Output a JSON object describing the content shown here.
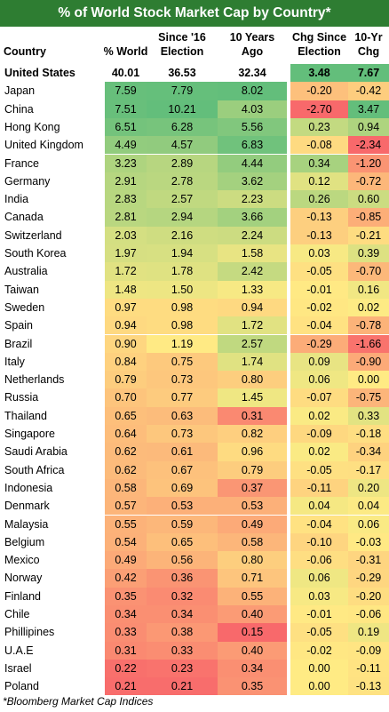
{
  "title": "% of World Stock Market Cap by Country*",
  "footnote": "*Bloomberg Market Cap Indices",
  "chart_data": {
    "type": "table",
    "columns": [
      "Country",
      "% World",
      "Since '16 Election",
      "10 Years Ago",
      "Chg Since Election",
      "10-Yr Chg"
    ],
    "rows": [
      {
        "country": "United States",
        "world": "40.01",
        "election": "36.53",
        "ago": "32.34",
        "chg_election": "3.48",
        "chg_10yr": "7.67"
      },
      {
        "country": "Japan",
        "world": "7.59",
        "election": "7.79",
        "ago": "8.02",
        "chg_election": "-0.20",
        "chg_10yr": "-0.42"
      },
      {
        "country": "China",
        "world": "7.51",
        "election": "10.21",
        "ago": "4.03",
        "chg_election": "-2.70",
        "chg_10yr": "3.47"
      },
      {
        "country": "Hong Kong",
        "world": "6.51",
        "election": "6.28",
        "ago": "5.56",
        "chg_election": "0.23",
        "chg_10yr": "0.94"
      },
      {
        "country": "United Kingdom",
        "world": "4.49",
        "election": "4.57",
        "ago": "6.83",
        "chg_election": "-0.08",
        "chg_10yr": "-2.34"
      },
      {
        "country": "France",
        "world": "3.23",
        "election": "2.89",
        "ago": "4.44",
        "chg_election": "0.34",
        "chg_10yr": "-1.20"
      },
      {
        "country": "Germany",
        "world": "2.91",
        "election": "2.78",
        "ago": "3.62",
        "chg_election": "0.12",
        "chg_10yr": "-0.72"
      },
      {
        "country": "India",
        "world": "2.83",
        "election": "2.57",
        "ago": "2.23",
        "chg_election": "0.26",
        "chg_10yr": "0.60"
      },
      {
        "country": "Canada",
        "world": "2.81",
        "election": "2.94",
        "ago": "3.66",
        "chg_election": "-0.13",
        "chg_10yr": "-0.85"
      },
      {
        "country": "Switzerland",
        "world": "2.03",
        "election": "2.16",
        "ago": "2.24",
        "chg_election": "-0.13",
        "chg_10yr": "-0.21"
      },
      {
        "country": "South Korea",
        "world": "1.97",
        "election": "1.94",
        "ago": "1.58",
        "chg_election": "0.03",
        "chg_10yr": "0.39"
      },
      {
        "country": "Australia",
        "world": "1.72",
        "election": "1.78",
        "ago": "2.42",
        "chg_election": "-0.05",
        "chg_10yr": "-0.70"
      },
      {
        "country": "Taiwan",
        "world": "1.48",
        "election": "1.50",
        "ago": "1.33",
        "chg_election": "-0.01",
        "chg_10yr": "0.16"
      },
      {
        "country": "Sweden",
        "world": "0.97",
        "election": "0.98",
        "ago": "0.94",
        "chg_election": "-0.02",
        "chg_10yr": "0.02"
      },
      {
        "country": "Spain",
        "world": "0.94",
        "election": "0.98",
        "ago": "1.72",
        "chg_election": "-0.04",
        "chg_10yr": "-0.78"
      },
      {
        "country": "Brazil",
        "world": "0.90",
        "election": "1.19",
        "ago": "2.57",
        "chg_election": "-0.29",
        "chg_10yr": "-1.66"
      },
      {
        "country": "Italy",
        "world": "0.84",
        "election": "0.75",
        "ago": "1.74",
        "chg_election": "0.09",
        "chg_10yr": "-0.90"
      },
      {
        "country": "Netherlands",
        "world": "0.79",
        "election": "0.73",
        "ago": "0.80",
        "chg_election": "0.06",
        "chg_10yr": "0.00"
      },
      {
        "country": "Russia",
        "world": "0.70",
        "election": "0.77",
        "ago": "1.45",
        "chg_election": "-0.07",
        "chg_10yr": "-0.75"
      },
      {
        "country": "Thailand",
        "world": "0.65",
        "election": "0.63",
        "ago": "0.31",
        "chg_election": "0.02",
        "chg_10yr": "0.33"
      },
      {
        "country": "Singapore",
        "world": "0.64",
        "election": "0.73",
        "ago": "0.82",
        "chg_election": "-0.09",
        "chg_10yr": "-0.18"
      },
      {
        "country": "Saudi Arabia",
        "world": "0.62",
        "election": "0.61",
        "ago": "0.96",
        "chg_election": "0.02",
        "chg_10yr": "-0.34"
      },
      {
        "country": "South Africa",
        "world": "0.62",
        "election": "0.67",
        "ago": "0.79",
        "chg_election": "-0.05",
        "chg_10yr": "-0.17"
      },
      {
        "country": "Indonesia",
        "world": "0.58",
        "election": "0.69",
        "ago": "0.37",
        "chg_election": "-0.11",
        "chg_10yr": "0.20"
      },
      {
        "country": "Denmark",
        "world": "0.57",
        "election": "0.53",
        "ago": "0.53",
        "chg_election": "0.04",
        "chg_10yr": "0.04"
      },
      {
        "country": "Malaysia",
        "world": "0.55",
        "election": "0.59",
        "ago": "0.49",
        "chg_election": "-0.04",
        "chg_10yr": "0.06"
      },
      {
        "country": "Belgium",
        "world": "0.54",
        "election": "0.65",
        "ago": "0.58",
        "chg_election": "-0.10",
        "chg_10yr": "-0.03"
      },
      {
        "country": "Mexico",
        "world": "0.49",
        "election": "0.56",
        "ago": "0.80",
        "chg_election": "-0.06",
        "chg_10yr": "-0.31"
      },
      {
        "country": "Norway",
        "world": "0.42",
        "election": "0.36",
        "ago": "0.71",
        "chg_election": "0.06",
        "chg_10yr": "-0.29"
      },
      {
        "country": "Finland",
        "world": "0.35",
        "election": "0.32",
        "ago": "0.55",
        "chg_election": "0.03",
        "chg_10yr": "-0.20"
      },
      {
        "country": "Chile",
        "world": "0.34",
        "election": "0.34",
        "ago": "0.40",
        "chg_election": "-0.01",
        "chg_10yr": "-0.06"
      },
      {
        "country": "Phillipines",
        "world": "0.33",
        "election": "0.38",
        "ago": "0.15",
        "chg_election": "-0.05",
        "chg_10yr": "0.19"
      },
      {
        "country": "U.A.E",
        "world": "0.31",
        "election": "0.33",
        "ago": "0.40",
        "chg_election": "-0.02",
        "chg_10yr": "-0.09"
      },
      {
        "country": "Israel",
        "world": "0.22",
        "election": "0.23",
        "ago": "0.34",
        "chg_election": "0.00",
        "chg_10yr": "-0.11"
      },
      {
        "country": "Poland",
        "world": "0.21",
        "election": "0.21",
        "ago": "0.35",
        "chg_election": "0.00",
        "chg_10yr": "-0.13"
      }
    ]
  },
  "header": {
    "country": "Country",
    "world": "% World",
    "election": [
      "Since '16",
      "Election"
    ],
    "ago": [
      "10 Years",
      "Ago"
    ],
    "chg_election": [
      "Chg Since",
      "Election"
    ],
    "chg_10yr": [
      "10-Yr",
      "Chg"
    ]
  },
  "colors": {
    "title_bg": "#2e7d32",
    "green": "#63be7b",
    "yellow": "#ffeb84",
    "red": "#f8696b"
  }
}
